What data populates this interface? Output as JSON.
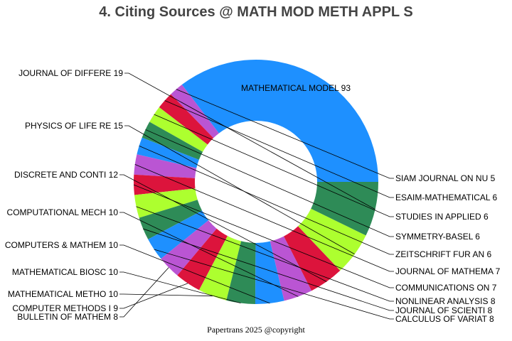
{
  "chart_data": {
    "type": "pie",
    "title": "4. Citing Sources @ MATH MOD METH APPL S",
    "donut": true,
    "series": [
      {
        "label": "MATHEMATICAL MODEL",
        "value": 93,
        "color": "#1E90FF"
      },
      {
        "label": "SIAM JOURNAL ON NU",
        "value": 5,
        "color": "#BA55D3"
      },
      {
        "label": "ESAIM-MATHEMATICAL",
        "value": 6,
        "color": "#DC143C"
      },
      {
        "label": "STUDIES IN APPLIED",
        "value": 6,
        "color": "#ADFF2F"
      },
      {
        "label": "SYMMETRY-BASEL",
        "value": 6,
        "color": "#2E8B57"
      },
      {
        "label": "ZEITSCHRIFT FUR AN",
        "value": 6,
        "color": "#1E90FF"
      },
      {
        "label": "JOURNAL OF MATHEMA",
        "value": 7,
        "color": "#BA55D3"
      },
      {
        "label": "COMMUNICATIONS ON ",
        "value": 7,
        "color": "#DC143C"
      },
      {
        "label": "NONLINEAR ANALYSIS",
        "value": 8,
        "color": "#ADFF2F"
      },
      {
        "label": "JOURNAL OF SCIENTI",
        "value": 8,
        "color": "#2E8B57"
      },
      {
        "label": "CALCULUS OF VARIAT",
        "value": 8,
        "color": "#1E90FF"
      },
      {
        "label": "BULLETIN OF MATHEM",
        "value": 8,
        "color": "#BA55D3"
      },
      {
        "label": "COMPUTER METHODS I",
        "value": 9,
        "color": "#DC143C"
      },
      {
        "label": "MATHEMATICAL METHO",
        "value": 10,
        "color": "#ADFF2F"
      },
      {
        "label": "MATHEMATICAL BIOSC",
        "value": 10,
        "color": "#2E8B57"
      },
      {
        "label": "COMPUTERS & MATHEM",
        "value": 10,
        "color": "#1E90FF"
      },
      {
        "label": "COMPUTATIONAL MECH",
        "value": 10,
        "color": "#BA55D3"
      },
      {
        "label": "DISCRETE AND CONTI",
        "value": 12,
        "color": "#DC143C"
      },
      {
        "label": "PHYSICS OF LIFE RE",
        "value": 15,
        "color": "#ADFF2F"
      },
      {
        "label": "JOURNAL OF DIFFERE",
        "value": 19,
        "color": "#2E8B57"
      }
    ]
  },
  "footer": "Papertrans 2025 @copyright"
}
